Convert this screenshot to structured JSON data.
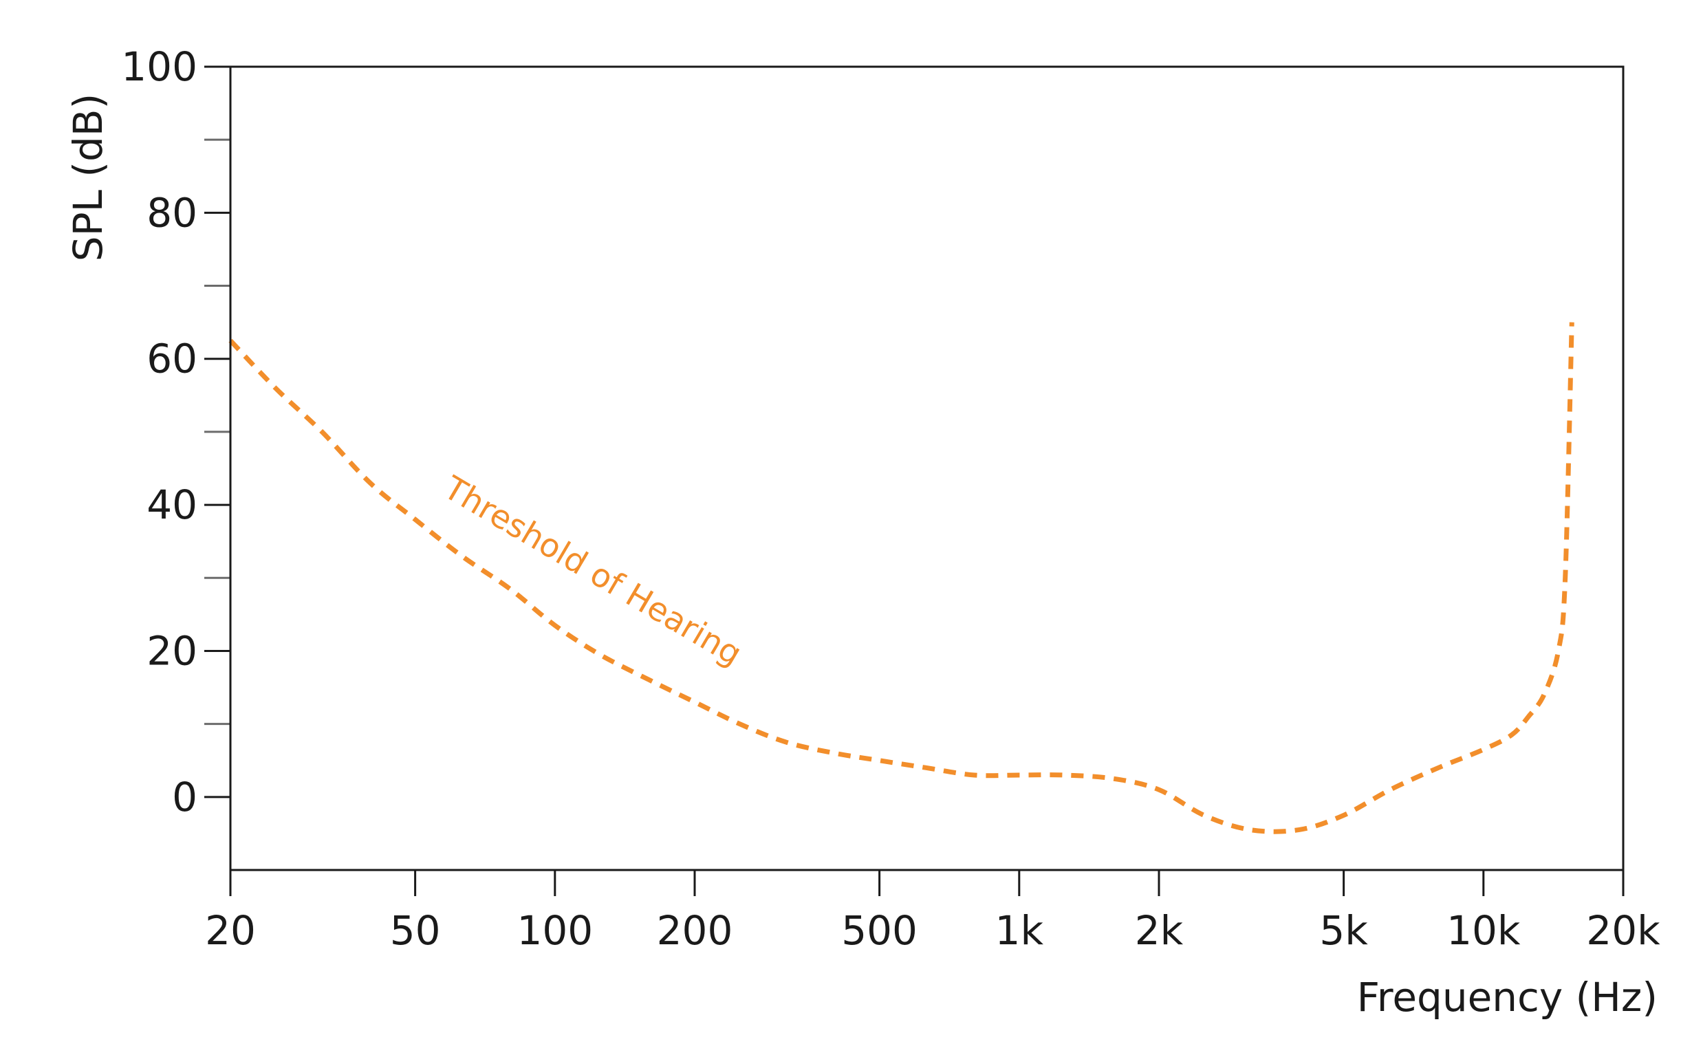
{
  "chart_data": {
    "type": "line",
    "title": "",
    "xlabel": "Frequency (Hz)",
    "ylabel": "SPL (dB)",
    "x_scale": "log",
    "xlim": [
      20,
      20000
    ],
    "ylim": [
      -10,
      100
    ],
    "x_ticks": [
      20,
      50,
      100,
      200,
      500,
      1000,
      2000,
      5000,
      10000,
      20000
    ],
    "x_tick_labels": [
      "20",
      "50",
      "100",
      "200",
      "500",
      "1k",
      "2k",
      "5k",
      "10k",
      "20k"
    ],
    "y_ticks": [
      0,
      20,
      40,
      60,
      80,
      100
    ],
    "y_tick_labels": [
      "0",
      "20",
      "40",
      "60",
      "80",
      "100"
    ],
    "y_minor_ticks": [
      10,
      30,
      50,
      70,
      90
    ],
    "grid": false,
    "series": [
      {
        "name": "Threshold of Hearing",
        "color": "#f28e2b",
        "line_style": "dashed",
        "x": [
          20,
          25,
          31.5,
          40,
          50,
          63,
          80,
          100,
          125,
          160,
          200,
          250,
          315,
          400,
          500,
          630,
          800,
          1000,
          1250,
          1600,
          2000,
          2500,
          3150,
          4000,
          5000,
          6300,
          8000,
          10000,
          11500,
          12500,
          13500,
          14500,
          15000,
          15500
        ],
        "y": [
          62.5,
          56,
          50,
          43,
          38,
          33,
          28.5,
          23.5,
          19.5,
          16,
          13,
          10,
          7.5,
          6,
          5,
          4,
          3,
          3,
          3,
          2.5,
          1,
          -2.5,
          -4.5,
          -4.5,
          -2.5,
          1,
          4,
          6.5,
          8.5,
          11,
          14,
          20,
          30,
          65
        ]
      }
    ],
    "annotations": [
      {
        "text": "Threshold of Hearing",
        "color": "#f28e2b"
      }
    ]
  }
}
